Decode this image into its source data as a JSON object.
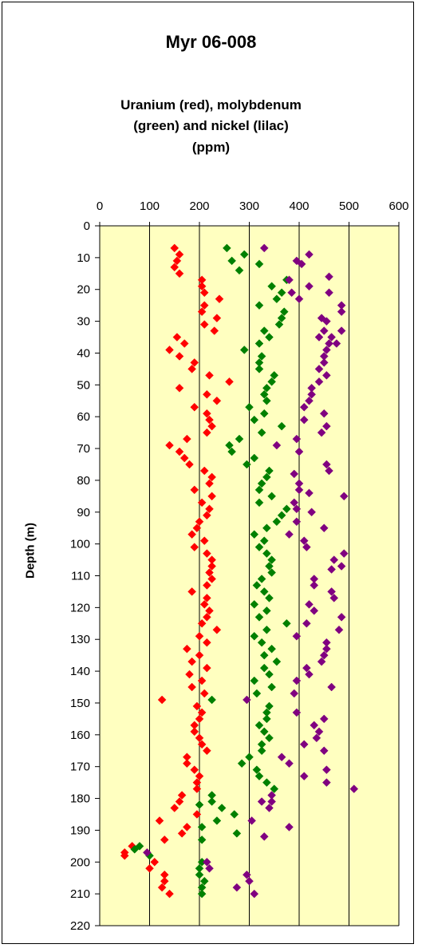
{
  "title": "Myr 06-008",
  "subtitle_lines": [
    "Uranium (red), molybdenum",
    "(green) and nickel (lilac)",
    "(ppm)"
  ],
  "chart_data": {
    "type": "scatter",
    "title": "Myr 06-008",
    "subtitle": "Uranium (red), molybdenum (green) and nickel (lilac) (ppm)",
    "xlabel": "",
    "ylabel": "Depth (m)",
    "xlim": [
      0,
      600
    ],
    "ylim": [
      220,
      0
    ],
    "x_ticks": [
      "0",
      "100",
      "200",
      "300",
      "400",
      "500",
      "600"
    ],
    "y_ticks": [
      "0",
      "10",
      "20",
      "30",
      "40",
      "50",
      "60",
      "70",
      "80",
      "90",
      "100",
      "110",
      "120",
      "130",
      "140",
      "150",
      "160",
      "170",
      "180",
      "190",
      "200",
      "210",
      "220"
    ],
    "x_axis_position": "top",
    "grid": "vertical",
    "legend": "none",
    "plot_background": "#ffffc0",
    "series": [
      {
        "color": "#ff0000",
        "points": [
          [
            150,
            7
          ],
          [
            160,
            9
          ],
          [
            155,
            11
          ],
          [
            150,
            13
          ],
          [
            160,
            15
          ],
          [
            205,
            17
          ],
          [
            205,
            19
          ],
          [
            210,
            21
          ],
          [
            240,
            23
          ],
          [
            210,
            25
          ],
          [
            205,
            27
          ],
          [
            235,
            29
          ],
          [
            210,
            31
          ],
          [
            230,
            33
          ],
          [
            155,
            35
          ],
          [
            170,
            37
          ],
          [
            140,
            39
          ],
          [
            160,
            41
          ],
          [
            190,
            43
          ],
          [
            185,
            45
          ],
          [
            220,
            47
          ],
          [
            260,
            49
          ],
          [
            160,
            51
          ],
          [
            215,
            53
          ],
          [
            235,
            55
          ],
          [
            190,
            57
          ],
          [
            215,
            59
          ],
          [
            220,
            61
          ],
          [
            225,
            63
          ],
          [
            215,
            65
          ],
          [
            175,
            67
          ],
          [
            140,
            69
          ],
          [
            160,
            71
          ],
          [
            170,
            73
          ],
          [
            180,
            75
          ],
          [
            210,
            77
          ],
          [
            225,
            79
          ],
          [
            220,
            81
          ],
          [
            190,
            83
          ],
          [
            225,
            85
          ],
          [
            205,
            87
          ],
          [
            220,
            89
          ],
          [
            215,
            91
          ],
          [
            200,
            93
          ],
          [
            195,
            95
          ],
          [
            185,
            97
          ],
          [
            210,
            99
          ],
          [
            190,
            101
          ],
          [
            215,
            103
          ],
          [
            225,
            105
          ],
          [
            225,
            107
          ],
          [
            220,
            109
          ],
          [
            225,
            111
          ],
          [
            215,
            113
          ],
          [
            185,
            115
          ],
          [
            215,
            117
          ],
          [
            210,
            119
          ],
          [
            220,
            121
          ],
          [
            215,
            123
          ],
          [
            205,
            125
          ],
          [
            235,
            127
          ],
          [
            200,
            129
          ],
          [
            215,
            131
          ],
          [
            175,
            133
          ],
          [
            200,
            135
          ],
          [
            185,
            137
          ],
          [
            215,
            139
          ],
          [
            180,
            141
          ],
          [
            205,
            143
          ],
          [
            185,
            145
          ],
          [
            210,
            147
          ],
          [
            125,
            149
          ],
          [
            195,
            151
          ],
          [
            205,
            153
          ],
          [
            200,
            155
          ],
          [
            190,
            157
          ],
          [
            190,
            159
          ],
          [
            200,
            161
          ],
          [
            205,
            163
          ],
          [
            215,
            165
          ],
          [
            175,
            167
          ],
          [
            175,
            169
          ],
          [
            190,
            171
          ],
          [
            200,
            173
          ],
          [
            195,
            175
          ],
          [
            195,
            177
          ],
          [
            165,
            179
          ],
          [
            160,
            181
          ],
          [
            150,
            183
          ],
          [
            195,
            185
          ],
          [
            120,
            187
          ],
          [
            175,
            189
          ],
          [
            165,
            191
          ],
          [
            130,
            193
          ],
          [
            65,
            195
          ],
          [
            50,
            197
          ],
          [
            50,
            198
          ],
          [
            110,
            200
          ],
          [
            100,
            202
          ],
          [
            130,
            204
          ],
          [
            130,
            206
          ],
          [
            125,
            208
          ],
          [
            140,
            210
          ]
        ]
      },
      {
        "color": "#008000",
        "points": [
          [
            255,
            7
          ],
          [
            290,
            9
          ],
          [
            265,
            11
          ],
          [
            320,
            12
          ],
          [
            280,
            14
          ],
          [
            375,
            17
          ],
          [
            345,
            19
          ],
          [
            365,
            21
          ],
          [
            355,
            23
          ],
          [
            320,
            25
          ],
          [
            370,
            27
          ],
          [
            365,
            29
          ],
          [
            360,
            31
          ],
          [
            330,
            33
          ],
          [
            340,
            35
          ],
          [
            320,
            37
          ],
          [
            290,
            39
          ],
          [
            325,
            41
          ],
          [
            320,
            43
          ],
          [
            320,
            45
          ],
          [
            350,
            47
          ],
          [
            345,
            49
          ],
          [
            335,
            51
          ],
          [
            330,
            53
          ],
          [
            335,
            55
          ],
          [
            300,
            57
          ],
          [
            330,
            59
          ],
          [
            310,
            61
          ],
          [
            365,
            63
          ],
          [
            325,
            65
          ],
          [
            280,
            67
          ],
          [
            260,
            69
          ],
          [
            265,
            71
          ],
          [
            310,
            73
          ],
          [
            295,
            75
          ],
          [
            340,
            77
          ],
          [
            335,
            79
          ],
          [
            325,
            81
          ],
          [
            320,
            83
          ],
          [
            345,
            85
          ],
          [
            320,
            87
          ],
          [
            375,
            89
          ],
          [
            365,
            91
          ],
          [
            355,
            93
          ],
          [
            335,
            95
          ],
          [
            310,
            97
          ],
          [
            330,
            99
          ],
          [
            320,
            101
          ],
          [
            335,
            103
          ],
          [
            345,
            105
          ],
          [
            340,
            107
          ],
          [
            345,
            109
          ],
          [
            325,
            111
          ],
          [
            315,
            113
          ],
          [
            330,
            115
          ],
          [
            340,
            117
          ],
          [
            310,
            119
          ],
          [
            335,
            121
          ],
          [
            320,
            123
          ],
          [
            375,
            125
          ],
          [
            335,
            127
          ],
          [
            310,
            129
          ],
          [
            325,
            131
          ],
          [
            345,
            133
          ],
          [
            330,
            135
          ],
          [
            355,
            137
          ],
          [
            330,
            139
          ],
          [
            340,
            141
          ],
          [
            310,
            143
          ],
          [
            345,
            145
          ],
          [
            315,
            147
          ],
          [
            225,
            149
          ],
          [
            340,
            151
          ],
          [
            335,
            153
          ],
          [
            335,
            155
          ],
          [
            320,
            157
          ],
          [
            330,
            159
          ],
          [
            340,
            161
          ],
          [
            325,
            163
          ],
          [
            325,
            165
          ],
          [
            300,
            167
          ],
          [
            285,
            169
          ],
          [
            315,
            171
          ],
          [
            320,
            173
          ],
          [
            335,
            175
          ],
          [
            350,
            177
          ],
          [
            225,
            179
          ],
          [
            225,
            181
          ],
          [
            200,
            182
          ],
          [
            245,
            183
          ],
          [
            270,
            185
          ],
          [
            235,
            187
          ],
          [
            205,
            189
          ],
          [
            275,
            191
          ],
          [
            205,
            193
          ],
          [
            80,
            195
          ],
          [
            70,
            196
          ],
          [
            100,
            198
          ],
          [
            205,
            200
          ],
          [
            200,
            202
          ],
          [
            200,
            204
          ],
          [
            210,
            206
          ],
          [
            205,
            208
          ],
          [
            205,
            210
          ]
        ]
      },
      {
        "color": "#800080",
        "points": [
          [
            330,
            7
          ],
          [
            420,
            9
          ],
          [
            395,
            11
          ],
          [
            405,
            12
          ],
          [
            460,
            16
          ],
          [
            380,
            17
          ],
          [
            385,
            21
          ],
          [
            420,
            19
          ],
          [
            460,
            21
          ],
          [
            400,
            23
          ],
          [
            485,
            25
          ],
          [
            485,
            27
          ],
          [
            445,
            29
          ],
          [
            455,
            30
          ],
          [
            450,
            33
          ],
          [
            485,
            33
          ],
          [
            440,
            35
          ],
          [
            465,
            35
          ],
          [
            460,
            37
          ],
          [
            475,
            37
          ],
          [
            455,
            39
          ],
          [
            450,
            41
          ],
          [
            450,
            43
          ],
          [
            440,
            45
          ],
          [
            455,
            47
          ],
          [
            440,
            49
          ],
          [
            425,
            51
          ],
          [
            425,
            53
          ],
          [
            420,
            55
          ],
          [
            410,
            57
          ],
          [
            450,
            59
          ],
          [
            410,
            61
          ],
          [
            455,
            63
          ],
          [
            445,
            65
          ],
          [
            395,
            67
          ],
          [
            355,
            69
          ],
          [
            400,
            71
          ],
          [
            455,
            75
          ],
          [
            460,
            77
          ],
          [
            390,
            78
          ],
          [
            400,
            81
          ],
          [
            400,
            83
          ],
          [
            420,
            84
          ],
          [
            490,
            85
          ],
          [
            390,
            87
          ],
          [
            395,
            89
          ],
          [
            425,
            90
          ],
          [
            395,
            93
          ],
          [
            450,
            95
          ],
          [
            380,
            97
          ],
          [
            410,
            99
          ],
          [
            415,
            101
          ],
          [
            490,
            103
          ],
          [
            470,
            105
          ],
          [
            485,
            107
          ],
          [
            465,
            108
          ],
          [
            430,
            111
          ],
          [
            430,
            113
          ],
          [
            465,
            115
          ],
          [
            470,
            117
          ],
          [
            420,
            119
          ],
          [
            430,
            121
          ],
          [
            485,
            123
          ],
          [
            415,
            125
          ],
          [
            480,
            127
          ],
          [
            395,
            129
          ],
          [
            455,
            131
          ],
          [
            455,
            133
          ],
          [
            450,
            135
          ],
          [
            445,
            137
          ],
          [
            415,
            139
          ],
          [
            420,
            141
          ],
          [
            395,
            143
          ],
          [
            465,
            145
          ],
          [
            390,
            147
          ],
          [
            295,
            149
          ],
          [
            395,
            153
          ],
          [
            450,
            155
          ],
          [
            430,
            157
          ],
          [
            440,
            159
          ],
          [
            435,
            161
          ],
          [
            410,
            163
          ],
          [
            450,
            165
          ],
          [
            365,
            167
          ],
          [
            380,
            169
          ],
          [
            455,
            171
          ],
          [
            410,
            173
          ],
          [
            455,
            175
          ],
          [
            510,
            177
          ],
          [
            345,
            179
          ],
          [
            345,
            181
          ],
          [
            325,
            181
          ],
          [
            340,
            183
          ],
          [
            380,
            189
          ],
          [
            305,
            187
          ],
          [
            330,
            192
          ],
          [
            95,
            197
          ],
          [
            215,
            200
          ],
          [
            220,
            202
          ],
          [
            295,
            204
          ],
          [
            300,
            206
          ],
          [
            275,
            208
          ],
          [
            310,
            210
          ]
        ]
      }
    ]
  }
}
